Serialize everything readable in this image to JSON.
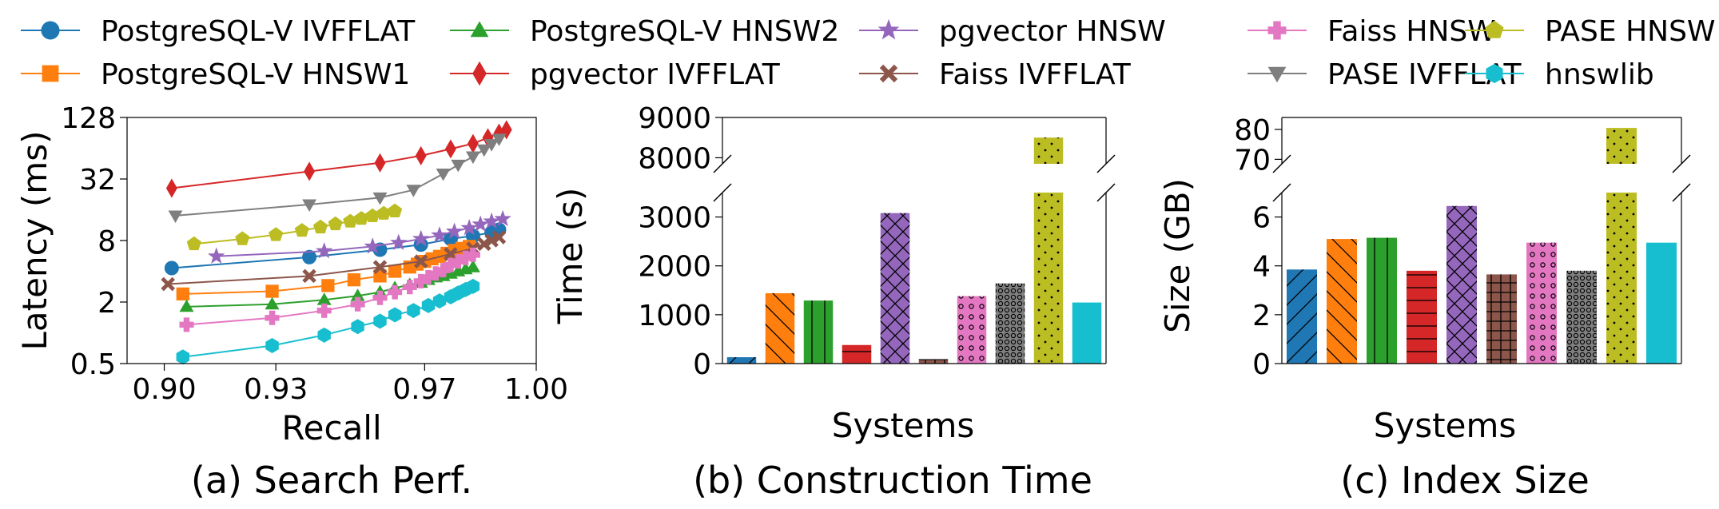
{
  "legend": [
    {
      "name": "PostgreSQL-V IVFFLAT",
      "color": "#1f77b4",
      "marker": "circle"
    },
    {
      "name": "PostgreSQL-V HNSW1",
      "color": "#ff7f0e",
      "marker": "square"
    },
    {
      "name": "PostgreSQL-V HNSW2",
      "color": "#2ca02c",
      "marker": "triangle-up"
    },
    {
      "name": "pgvector IVFFLAT",
      "color": "#d62728",
      "marker": "thin-diamond"
    },
    {
      "name": "pgvector HNSW",
      "color": "#9467bd",
      "marker": "star"
    },
    {
      "name": "Faiss IVFFLAT",
      "color": "#8c564b",
      "marker": "x-filled"
    },
    {
      "name": "Faiss HNSW",
      "color": "#e377c2",
      "marker": "plus-filled"
    },
    {
      "name": "PASE IVFFLAT",
      "color": "#7f7f7f",
      "marker": "triangle-down"
    },
    {
      "name": "PASE HNSW",
      "color": "#bcbd22",
      "marker": "pentagon"
    },
    {
      "name": "hnswlib",
      "color": "#17becf",
      "marker": "hexagon"
    }
  ],
  "captions": {
    "a": "(a) Search Perf.",
    "b": "(b) Construction Time",
    "c": "(c) Index Size"
  },
  "chart_data": [
    {
      "type": "line",
      "xlabel": "Recall",
      "ylabel": "Latency (ms)",
      "xlim": [
        0.89,
        1.0
      ],
      "ylim": [
        0.5,
        128
      ],
      "yscale": "log2",
      "xticks": [
        "0.90",
        "0.93",
        "0.97",
        "1.00"
      ],
      "xtick_values": [
        0.9,
        0.93,
        0.97,
        1.0
      ],
      "yticks": [
        "0.5",
        "2",
        "8",
        "32",
        "128"
      ],
      "ytick_values": [
        0.5,
        2,
        8,
        32,
        128
      ],
      "grid": false,
      "series": [
        {
          "name": "PostgreSQL-V IVFFLAT",
          "x": [
            0.902,
            0.939,
            0.958,
            0.969,
            0.977,
            0.983,
            0.988,
            0.99
          ],
          "y": [
            4.3,
            5.5,
            6.5,
            7.3,
            8.3,
            8.9,
            9.6,
            10.2
          ]
        },
        {
          "name": "PostgreSQL-V HNSW1",
          "x": [
            0.905,
            0.929,
            0.944,
            0.951,
            0.958,
            0.962,
            0.966,
            0.968,
            0.97,
            0.972,
            0.974,
            0.976,
            0.978,
            0.98,
            0.982
          ],
          "y": [
            2.4,
            2.55,
            2.9,
            3.3,
            3.6,
            4.0,
            4.4,
            4.7,
            5.0,
            5.3,
            5.6,
            6.0,
            6.4,
            6.7,
            7.0
          ]
        },
        {
          "name": "PostgreSQL-V HNSW2",
          "x": [
            0.906,
            0.929,
            0.943,
            0.952,
            0.958,
            0.962,
            0.966,
            0.969,
            0.971,
            0.973,
            0.975,
            0.977,
            0.979,
            0.981,
            0.983
          ],
          "y": [
            1.8,
            1.9,
            2.1,
            2.3,
            2.5,
            2.75,
            2.95,
            3.1,
            3.3,
            3.5,
            3.6,
            3.8,
            4.0,
            4.2,
            4.4
          ]
        },
        {
          "name": "pgvector IVFFLAT",
          "x": [
            0.902,
            0.939,
            0.958,
            0.969,
            0.977,
            0.983,
            0.987,
            0.99,
            0.992
          ],
          "y": [
            26,
            38,
            46,
            54,
            63,
            71,
            81,
            90,
            97
          ]
        },
        {
          "name": "pgvector HNSW",
          "x": [
            0.914,
            0.943,
            0.956,
            0.963,
            0.969,
            0.974,
            0.978,
            0.982,
            0.985,
            0.988,
            0.991
          ],
          "y": [
            5.6,
            6.3,
            7.0,
            7.6,
            8.3,
            9.0,
            9.8,
            10.6,
            11.5,
            12.3,
            13.0
          ]
        },
        {
          "name": "Faiss IVFFLAT",
          "x": [
            0.901,
            0.939,
            0.958,
            0.969,
            0.977,
            0.983,
            0.986,
            0.988,
            0.99
          ],
          "y": [
            3.0,
            3.6,
            4.4,
            5.0,
            5.9,
            6.7,
            7.4,
            8.0,
            8.6
          ]
        },
        {
          "name": "Faiss HNSW",
          "x": [
            0.906,
            0.929,
            0.943,
            0.952,
            0.958,
            0.962,
            0.966,
            0.969,
            0.971,
            0.973,
            0.975,
            0.977,
            0.979,
            0.981,
            0.983
          ],
          "y": [
            1.2,
            1.4,
            1.65,
            1.9,
            2.2,
            2.5,
            2.8,
            3.2,
            3.5,
            3.8,
            4.1,
            4.6,
            5.0,
            5.4,
            5.8
          ]
        },
        {
          "name": "PASE IVFFLAT",
          "x": [
            0.903,
            0.939,
            0.958,
            0.967,
            0.975,
            0.979,
            0.983,
            0.986,
            0.988,
            0.99
          ],
          "y": [
            14,
            18,
            21,
            25,
            36,
            44,
            53,
            62,
            70,
            79
          ]
        },
        {
          "name": "PASE HNSW",
          "x": [
            0.908,
            0.921,
            0.93,
            0.937,
            0.942,
            0.946,
            0.95,
            0.953,
            0.956,
            0.959,
            0.962
          ],
          "y": [
            7.4,
            8.3,
            9.1,
            10.0,
            10.8,
            11.6,
            12.3,
            13.1,
            13.9,
            14.7,
            15.5
          ]
        },
        {
          "name": "hnswlib",
          "x": [
            0.905,
            0.929,
            0.943,
            0.952,
            0.958,
            0.962,
            0.967,
            0.971,
            0.974,
            0.977,
            0.979,
            0.981,
            0.983
          ],
          "y": [
            0.58,
            0.75,
            0.95,
            1.15,
            1.3,
            1.5,
            1.65,
            1.85,
            2.05,
            2.25,
            2.45,
            2.65,
            2.85
          ]
        }
      ]
    },
    {
      "type": "bar",
      "xlabel": "Systems",
      "ylabel": "Time (s)",
      "broken_axis": true,
      "lower_ylim": [
        0,
        3500
      ],
      "upper_ylim": [
        7850,
        9000
      ],
      "lower_yticks": [
        "0",
        "1000",
        "2000",
        "3000"
      ],
      "lower_ytick_values": [
        0,
        1000,
        2000,
        3000
      ],
      "upper_yticks": [
        "8000",
        "9000"
      ],
      "upper_ytick_values": [
        8000,
        9000
      ],
      "categories": [
        "PostgreSQL-V IVFFLAT",
        "PostgreSQL-V HNSW1",
        "PostgreSQL-V HNSW2",
        "pgvector IVFFLAT",
        "pgvector HNSW",
        "Faiss IVFFLAT",
        "Faiss HNSW",
        "PASE IVFFLAT",
        "PASE HNSW",
        "hnswlib"
      ],
      "values": [
        130,
        1440,
        1290,
        380,
        3080,
        90,
        1380,
        1640,
        8500,
        1250
      ],
      "hatches": [
        "slash",
        "backslash",
        "vertical",
        "horizontal",
        "cross",
        "grid",
        "circles",
        "dense-circles",
        "dots",
        "none"
      ]
    },
    {
      "type": "bar",
      "xlabel": "Systems",
      "ylabel": "Size (GB)",
      "broken_axis": true,
      "lower_ylim": [
        0,
        7
      ],
      "upper_ylim": [
        68.5,
        84
      ],
      "lower_yticks": [
        "0",
        "2",
        "4",
        "6"
      ],
      "lower_ytick_values": [
        0,
        2,
        4,
        6
      ],
      "upper_yticks": [
        "70",
        "80"
      ],
      "upper_ytick_values": [
        70,
        80
      ],
      "categories": [
        "PostgreSQL-V IVFFLAT",
        "PostgreSQL-V HNSW1",
        "PostgreSQL-V HNSW2",
        "pgvector IVFFLAT",
        "pgvector HNSW",
        "Faiss IVFFLAT",
        "Faiss HNSW",
        "PASE IVFFLAT",
        "PASE HNSW",
        "hnswlib"
      ],
      "values": [
        3.85,
        5.1,
        5.15,
        3.8,
        6.45,
        3.65,
        4.95,
        3.8,
        80.5,
        4.95
      ],
      "hatches": [
        "slash",
        "backslash",
        "vertical",
        "horizontal",
        "cross",
        "grid",
        "circles",
        "dense-circles",
        "dots",
        "none"
      ]
    }
  ]
}
